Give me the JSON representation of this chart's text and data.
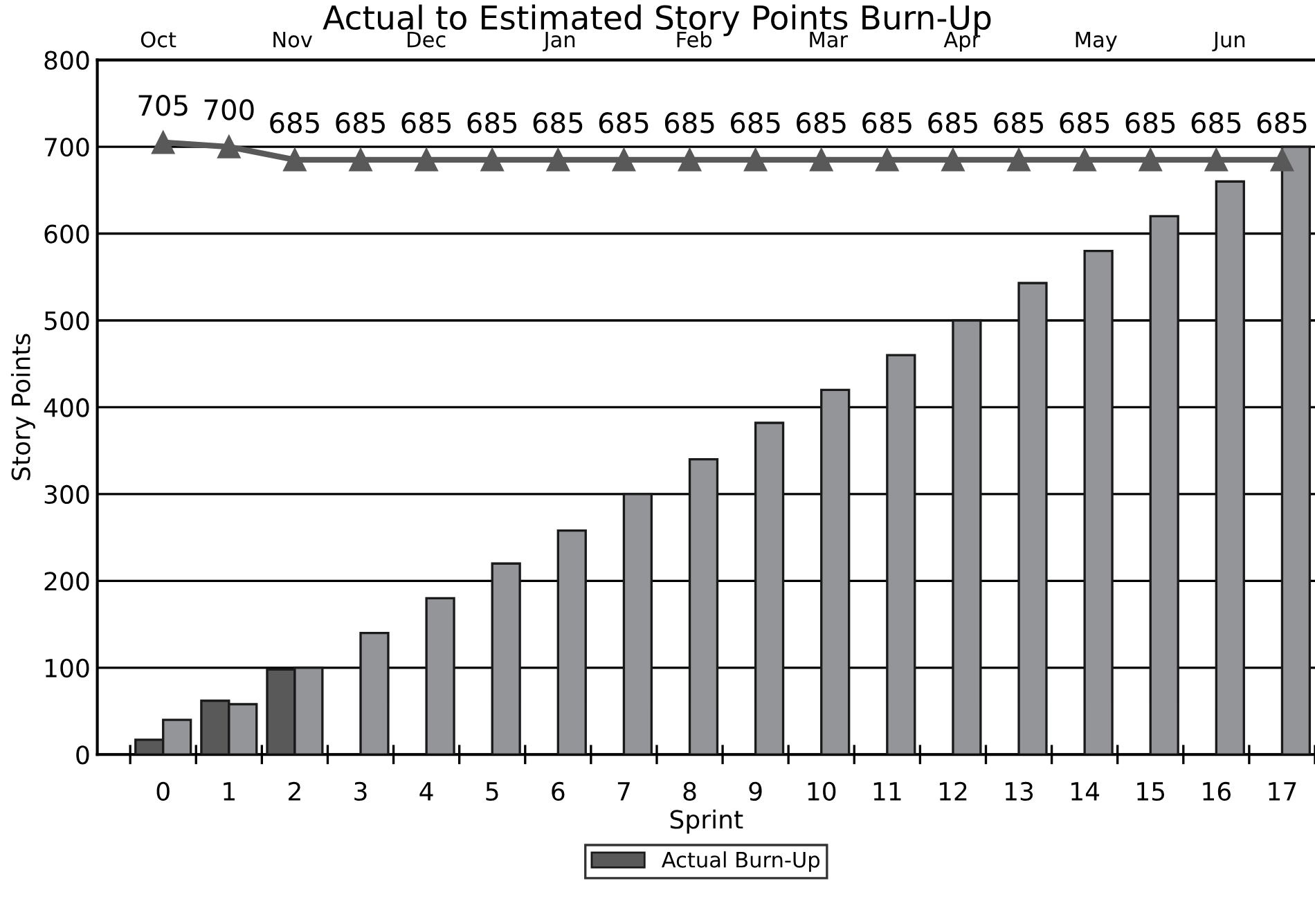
{
  "chart_data": {
    "type": "bar",
    "title": "Actual to Estimated Story Points Burn-Up",
    "xlabel": "Sprint",
    "ylabel": "Story Points",
    "categories": [
      "0",
      "1",
      "2",
      "3",
      "4",
      "5",
      "6",
      "7",
      "8",
      "9",
      "10",
      "11",
      "12",
      "13",
      "14",
      "15",
      "16",
      "17"
    ],
    "series": [
      {
        "name": "Actual Burn-Up",
        "color": "#595959",
        "values": [
          17,
          62,
          98,
          null,
          null,
          null,
          null,
          null,
          null,
          null,
          null,
          null,
          null,
          null,
          null,
          null,
          null,
          null
        ]
      },
      {
        "color": "#939598",
        "values": [
          40,
          58,
          100,
          140,
          180,
          220,
          258,
          300,
          340,
          382,
          420,
          460,
          500,
          543,
          580,
          620,
          660,
          700
        ]
      },
      {
        "type": "line",
        "color": "#595959",
        "marker": "triangle",
        "values": [
          705,
          700,
          685,
          685,
          685,
          685,
          685,
          685,
          685,
          685,
          685,
          685,
          685,
          685,
          685,
          685,
          685,
          685
        ],
        "value_labels": [
          "705",
          "700",
          "685",
          "685",
          "685",
          "685",
          "685",
          "685",
          "685",
          "685",
          "685",
          "685",
          "685",
          "685",
          "685",
          "685",
          "685",
          "685"
        ]
      }
    ],
    "ylim": [
      0,
      800
    ],
    "yticks": [
      0,
      100,
      200,
      300,
      400,
      500,
      600,
      700,
      800
    ],
    "annotations": [
      "Oct",
      "Nov",
      "Dec",
      "Jan",
      "Feb",
      "Mar",
      "Apr",
      "May",
      "Jun"
    ],
    "grid": "y",
    "legend": "bottom"
  }
}
